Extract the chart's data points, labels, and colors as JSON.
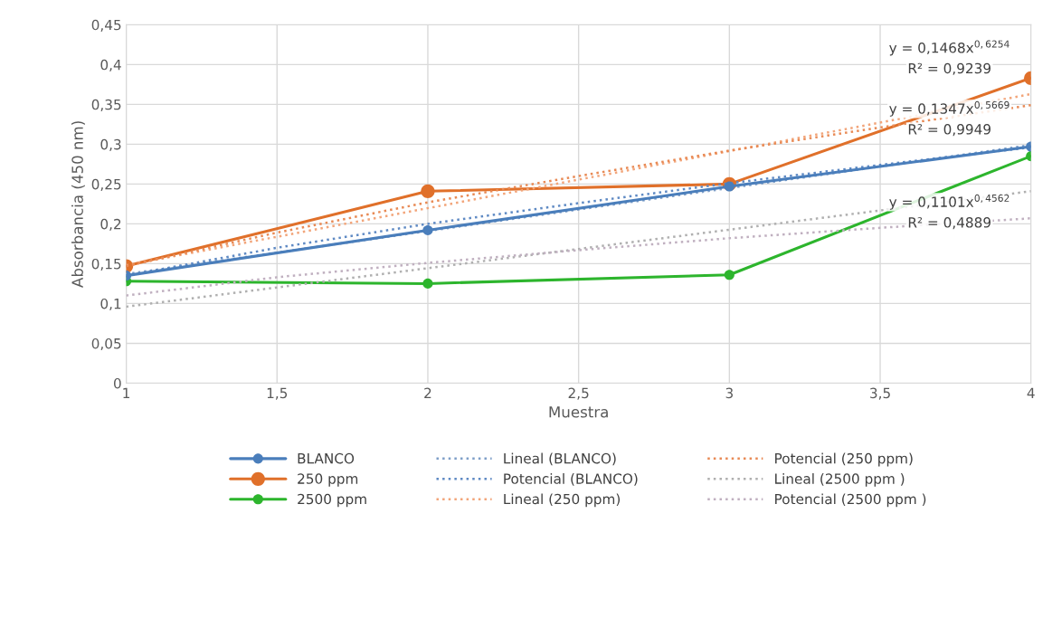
{
  "chart_data": {
    "type": "line",
    "xlabel": "Muestra",
    "ylabel": "Absorbancia (450 nm)",
    "xlim": [
      1,
      4
    ],
    "xticks": [
      1,
      {
        "value": 1.5,
        "label": "1,5"
      },
      2,
      {
        "value": 2.5,
        "label": "2,5"
      },
      3,
      {
        "value": 3.5,
        "label": "3,5"
      },
      4
    ],
    "ylim": [
      0,
      0.45
    ],
    "yticks": [
      0,
      {
        "value": 0.05,
        "label": "0,05"
      },
      {
        "value": 0.1,
        "label": "0,1"
      },
      {
        "value": 0.15,
        "label": "0,15"
      },
      {
        "value": 0.2,
        "label": "0,2"
      },
      {
        "value": 0.25,
        "label": "0,25"
      },
      {
        "value": 0.3,
        "label": "0,3"
      },
      {
        "value": 0.35,
        "label": "0,35"
      },
      {
        "value": 0.4,
        "label": "0,4"
      },
      {
        "value": 0.45,
        "label": "0,45"
      }
    ],
    "grid": true,
    "legend": "bottom",
    "series": [
      {
        "name": "BLANCO",
        "color": "#4a7ebb",
        "x": [
          1,
          2,
          3,
          4
        ],
        "values": [
          0.135,
          0.192,
          0.247,
          0.297
        ],
        "marker": "circle",
        "line_style": "solid"
      },
      {
        "name": "250 ppm",
        "color": "#e0702a",
        "x": [
          1,
          2,
          3,
          4
        ],
        "values": [
          0.147,
          0.241,
          0.25,
          0.383
        ],
        "marker": "circle",
        "line_style": "solid"
      },
      {
        "name": "2500 ppm",
        "color": "#2db52d",
        "x": [
          1,
          2,
          3,
          4
        ],
        "values": [
          0.128,
          0.125,
          0.136,
          0.285
        ],
        "marker": "circle",
        "line_style": "solid"
      },
      {
        "name": "Lineal (BLANCO)",
        "color": "#7f9fc8",
        "x": [
          1,
          4
        ],
        "values": [
          0.137,
          0.299
        ],
        "marker": "none",
        "line_style": "dotted"
      },
      {
        "name": "Potencial (BLANCO)",
        "color": "#5f8ac4",
        "x": [
          1,
          1.5,
          2,
          2.5,
          3,
          3.5,
          4
        ],
        "values": [
          0.135,
          0.17,
          0.2,
          0.226,
          0.251,
          0.274,
          0.296
        ],
        "marker": "none",
        "line_style": "dotted"
      },
      {
        "name": "Lineal (250 ppm)",
        "color": "#f2a57a",
        "x": [
          1,
          4
        ],
        "values": [
          0.148,
          0.363
        ],
        "marker": "none",
        "line_style": "dotted"
      },
      {
        "name": "Potencial (250 ppm)",
        "color": "#e88a55",
        "x": [
          1,
          1.5,
          2,
          2.5,
          3,
          3.5,
          4
        ],
        "values": [
          0.147,
          0.189,
          0.227,
          0.26,
          0.292,
          0.321,
          0.349
        ],
        "marker": "none",
        "line_style": "dotted"
      },
      {
        "name": "Lineal (2500 ppm )",
        "color": "#b0b0b0",
        "x": [
          1,
          4
        ],
        "values": [
          0.096,
          0.241
        ],
        "marker": "none",
        "line_style": "dotted"
      },
      {
        "name": "Potencial (2500 ppm )",
        "color": "#c0b0c0",
        "x": [
          1,
          1.5,
          2,
          2.5,
          3,
          3.5,
          4
        ],
        "values": [
          0.11,
          0.133,
          0.151,
          0.167,
          0.182,
          0.195,
          0.207
        ],
        "marker": "none",
        "line_style": "dotted"
      }
    ],
    "annotations": [
      "y = 0,1468x$^{0,6254}$",
      "R² = 0,9239",
      "y = 0,1347x$^{0,5669}$",
      "R² = 0,9949",
      "y = 0,1101x$^{0,4562}$",
      "R² = 0,4889"
    ]
  }
}
